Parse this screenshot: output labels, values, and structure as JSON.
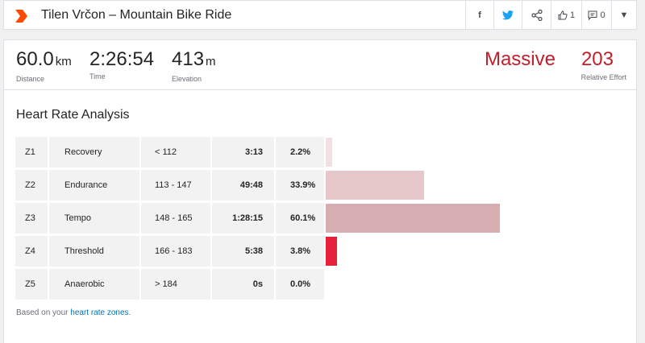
{
  "header": {
    "logo_icon": "chevron-logo-icon",
    "title": "Tilen Vrčon – Mountain Bike Ride",
    "share": {
      "facebook_icon": "facebook-icon",
      "twitter_icon": "twitter-icon",
      "share_icon": "share-icon",
      "kudos_icon": "thumbs-up-icon",
      "kudos_count": "1",
      "comments_icon": "comment-icon",
      "comments_count": "0",
      "more_icon": "chevron-down-icon"
    }
  },
  "stats": {
    "distance": {
      "value": "60.0",
      "unit": "km",
      "label": "Distance"
    },
    "time": {
      "value": "2:26:54",
      "label": "Time"
    },
    "elevation": {
      "value": "413",
      "unit": "m",
      "label": "Elevation"
    },
    "effort": {
      "word": "Massive",
      "value": "203",
      "label": "Relative Effort"
    }
  },
  "hr_analysis": {
    "title": "Heart Rate Analysis",
    "zones": [
      {
        "zone": "Z1",
        "name": "Recovery",
        "range": "< 112",
        "time": "3:13",
        "percent": "2.2%",
        "fraction": 0.022,
        "color": "#f2e1e3"
      },
      {
        "zone": "Z2",
        "name": "Endurance",
        "range": "113 - 147",
        "time": "49:48",
        "percent": "33.9%",
        "fraction": 0.339,
        "color": "#e6c7ca"
      },
      {
        "zone": "Z3",
        "name": "Tempo",
        "range": "148 - 165",
        "time": "1:28:15",
        "percent": "60.1%",
        "fraction": 0.601,
        "color": "#d6adb0"
      },
      {
        "zone": "Z4",
        "name": "Threshold",
        "range": "166 - 183",
        "time": "5:38",
        "percent": "3.8%",
        "fraction": 0.038,
        "color": "#e8213a"
      },
      {
        "zone": "Z5",
        "name": "Anaerobic",
        "range": "> 184",
        "time": "0s",
        "percent": "0.0%",
        "fraction": 0.0,
        "color": "#c21e2c"
      }
    ],
    "footnote_prefix": "Based on your ",
    "footnote_link": "heart rate zones",
    "footnote_suffix": "."
  }
}
